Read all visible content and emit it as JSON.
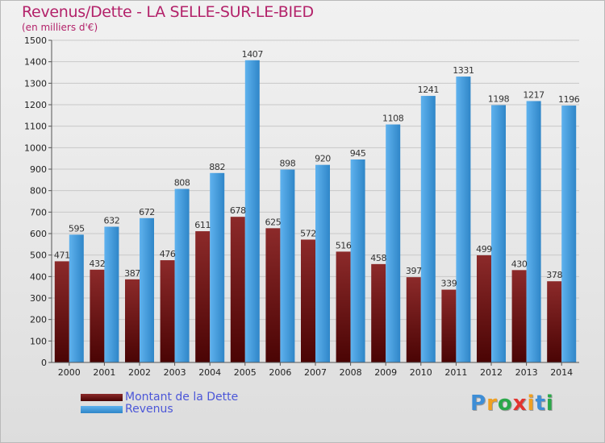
{
  "header": {
    "title": "Revenus/Dette - LA SELLE-SUR-LE-BIED",
    "subtitle": "(en milliers d'€)"
  },
  "legend": {
    "dette": "Montant de la Dette",
    "revenus": "Revenus"
  },
  "logo": {
    "letters": [
      "P",
      "r",
      "o",
      "x",
      "i",
      "t",
      "i"
    ],
    "colors": [
      "#3e8ed6",
      "#f0a020",
      "#2ba84a",
      "#e3342f",
      "#f0a020",
      "#3e8ed6",
      "#2ba84a"
    ]
  },
  "colors": {
    "dette_top": "#8c2a2a",
    "dette_bottom": "#4a0404",
    "revenus_light": "#5fb2ee",
    "revenus_dark": "#2f86c8"
  },
  "chart_data": {
    "type": "bar",
    "title": "Revenus/Dette - LA SELLE-SUR-LE-BIED",
    "ylabel": "(en milliers d'€)",
    "xlabel": "",
    "ylim": [
      0,
      1500
    ],
    "ytick_step": 100,
    "grid": true,
    "legend_position": "bottom-left",
    "categories": [
      "2000",
      "2001",
      "2002",
      "2003",
      "2004",
      "2005",
      "2006",
      "2007",
      "2008",
      "2009",
      "2010",
      "2011",
      "2012",
      "2013",
      "2014"
    ],
    "series": [
      {
        "name": "Montant de la Dette",
        "values": [
          471,
          432,
          387,
          476,
          611,
          678,
          625,
          572,
          516,
          458,
          397,
          339,
          499,
          430,
          378
        ]
      },
      {
        "name": "Revenus",
        "values": [
          595,
          632,
          672,
          808,
          882,
          1407,
          898,
          920,
          945,
          1108,
          1241,
          1331,
          1198,
          1217,
          1196
        ]
      }
    ]
  }
}
